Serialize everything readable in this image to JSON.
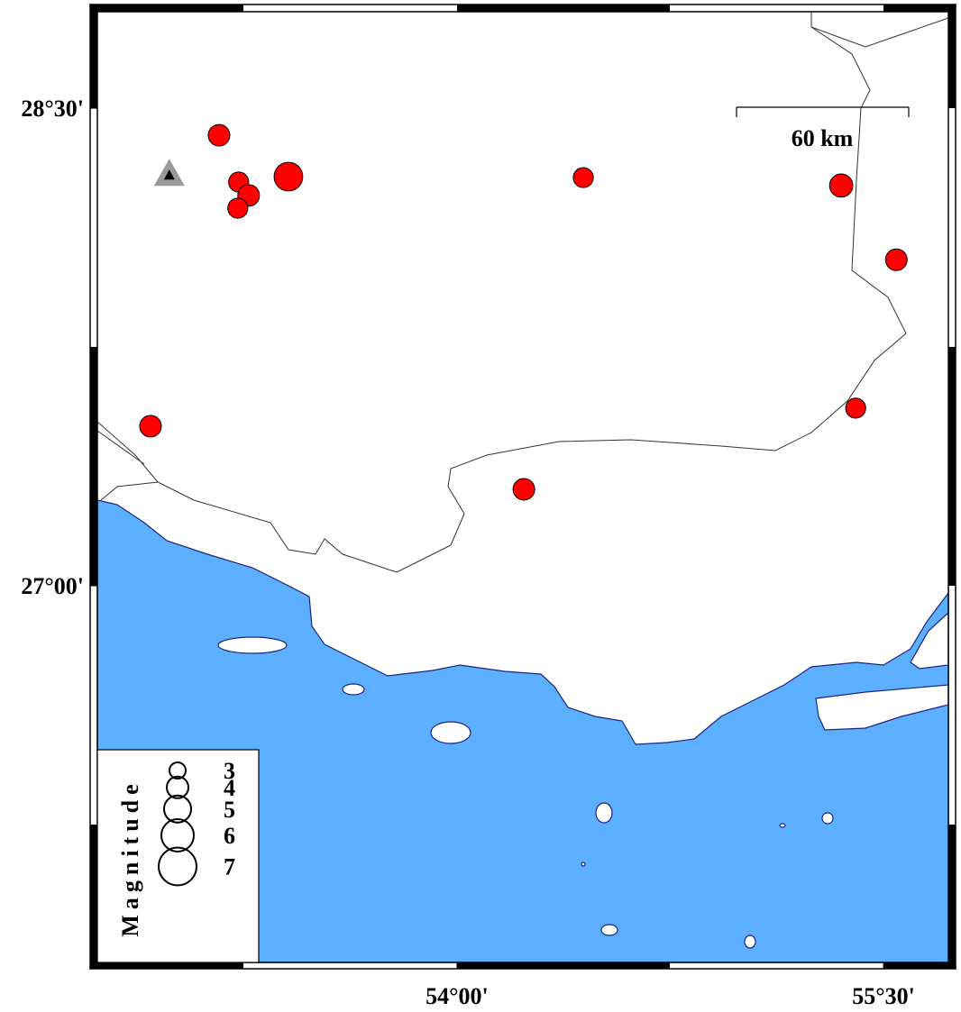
{
  "map": {
    "lon_lim": [
      52.735,
      55.728
    ],
    "lat_lim": [
      25.817,
      28.803
    ],
    "lon_ticks": [
      {
        "value": 54,
        "label": "54°00'"
      },
      {
        "value": 55.5,
        "label": "55°30'"
      }
    ],
    "lat_ticks": [
      {
        "value": 28.5,
        "label": "28°30'"
      },
      {
        "value": 27,
        "label": "27°00'"
      }
    ],
    "scale_bar": "60 km",
    "event_color": "#ff0000",
    "events": [
      {
        "lon": 53.163,
        "lat": 28.415,
        "magnitude": 4.0
      },
      {
        "lon": 53.232,
        "lat": 28.268,
        "magnitude": 3.7
      },
      {
        "lon": 53.267,
        "lat": 28.226,
        "magnitude": 4.0
      },
      {
        "lon": 53.229,
        "lat": 28.186,
        "magnitude": 3.7
      },
      {
        "lon": 53.407,
        "lat": 28.285,
        "magnitude": 5.3
      },
      {
        "lon": 54.444,
        "lat": 28.282,
        "magnitude": 3.7
      },
      {
        "lon": 55.351,
        "lat": 28.257,
        "magnitude": 4.3
      },
      {
        "lon": 55.545,
        "lat": 28.024,
        "magnitude": 4.0
      },
      {
        "lon": 52.922,
        "lat": 27.501,
        "magnitude": 4.0
      },
      {
        "lon": 54.235,
        "lat": 27.303,
        "magnitude": 4.0
      },
      {
        "lon": 55.402,
        "lat": 27.558,
        "magnitude": 3.7
      }
    ],
    "station": {
      "lon": 52.988,
      "lat": 28.29
    },
    "legend": {
      "title": "Magnitude",
      "magnitudes": [
        3,
        4,
        5,
        6,
        7
      ]
    }
  }
}
